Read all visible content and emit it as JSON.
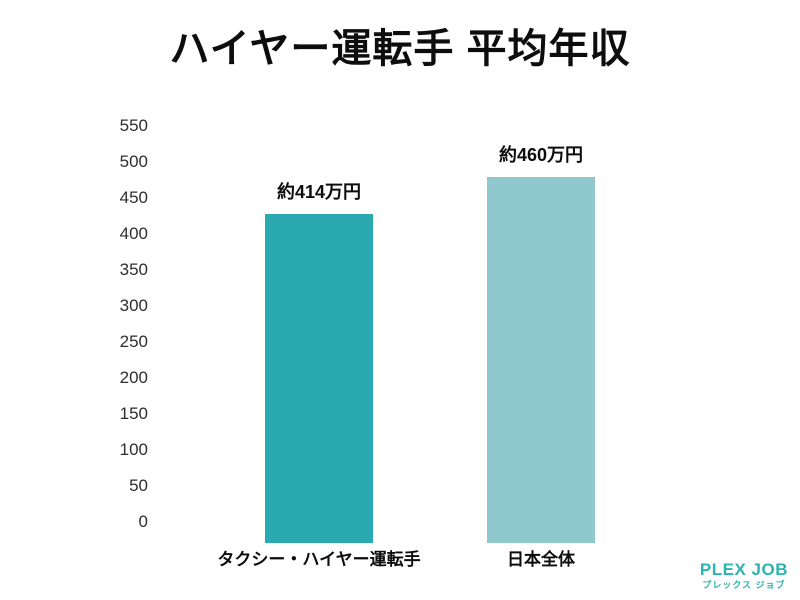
{
  "title": "ハイヤー運転手 平均年収",
  "chart_data": {
    "type": "bar",
    "title": "ハイヤー運転手 平均年収",
    "categories": [
      "タクシー・ハイヤー運転手",
      "日本全体"
    ],
    "values": [
      414,
      460
    ],
    "value_labels": [
      "約414万円",
      "約460万円"
    ],
    "unit": "万円",
    "ylim": [
      0,
      550
    ],
    "ytick_step": 50,
    "yticks": [
      550,
      500,
      450,
      400,
      350,
      300,
      250,
      200,
      150,
      100,
      50,
      0
    ],
    "bar_colors": [
      "#2aa9b0",
      "#8fc8cd"
    ],
    "axis_label_color": "#2e2e2e",
    "text_color": "#0d0d0d",
    "grid": false,
    "legend": "none",
    "xlabel": "",
    "ylabel": ""
  },
  "brand": {
    "name": "PLEX JOB",
    "subtitle": "プレックス ジョブ",
    "color": "#2cb4ae"
  }
}
